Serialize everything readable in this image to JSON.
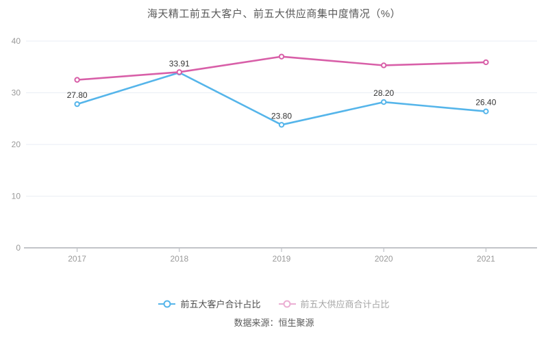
{
  "chart_data": {
    "type": "line",
    "title": "海天精工前五大客户、前五大供应商集中度情况（%）",
    "categories": [
      "2017",
      "2018",
      "2019",
      "2020",
      "2021"
    ],
    "series": [
      {
        "name": "前五大客户合计占比",
        "color": "#55b5ea",
        "values": [
          27.8,
          33.91,
          23.8,
          28.2,
          26.4
        ],
        "point_labels": [
          "27.80",
          "33.91",
          "23.80",
          "28.20",
          "26.40"
        ],
        "legend_dimmed": false
      },
      {
        "name": "前五大供应商合计占比",
        "color": "#d85fa8",
        "values": [
          32.5,
          34.0,
          37.0,
          35.3,
          35.9
        ],
        "point_labels": [],
        "legend_dimmed": true
      }
    ],
    "xlabel": "",
    "ylabel": "",
    "ylim": [
      0,
      40
    ],
    "yticks": [
      0,
      10,
      20,
      30,
      40
    ],
    "grid": true,
    "legend_position": "bottom"
  },
  "footer": {
    "source": "数据来源：恒生聚源"
  },
  "style": {
    "grid_color": "#e9eef4",
    "axis_color": "#858a92",
    "tick_color": "#b0b4bb",
    "axis_label_color": "#999999",
    "data_label_color": "#333333"
  }
}
